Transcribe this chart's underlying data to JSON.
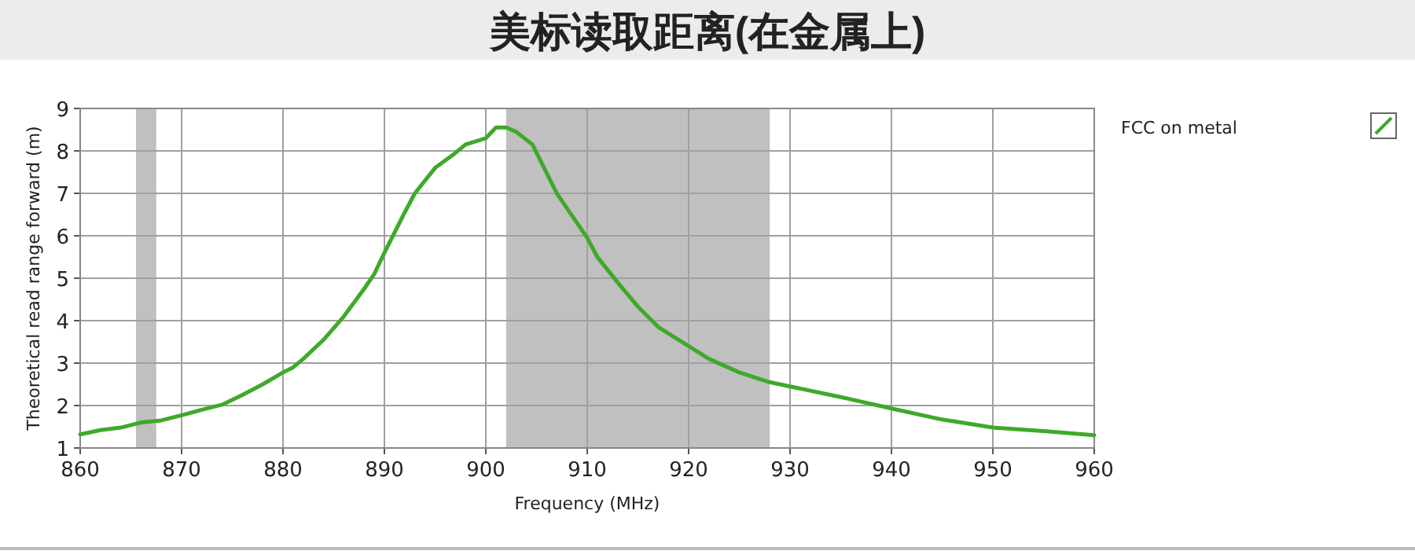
{
  "chart_data": {
    "type": "line",
    "title": "美标读取距离(在金属上)",
    "xlabel": "Frequency (MHz)",
    "ylabel": "Theoretical read range forward (m)",
    "xlim": [
      860,
      960
    ],
    "ylim": [
      1,
      9
    ],
    "xticks": [
      860,
      870,
      880,
      890,
      900,
      910,
      920,
      930,
      940,
      950,
      960
    ],
    "yticks": [
      1,
      2,
      3,
      4,
      5,
      6,
      7,
      8,
      9
    ],
    "grid": true,
    "legend": "right",
    "bands": [
      {
        "axis": "x",
        "from": 865.5,
        "to": 867.5,
        "color": "#c0c0c0"
      },
      {
        "axis": "x",
        "from": 902,
        "to": 928,
        "color": "#c0c0c0"
      }
    ],
    "series": [
      {
        "name": "FCC on metal",
        "color": "#3fa92a",
        "x": [
          860,
          862,
          864,
          866,
          868,
          870,
          872,
          874,
          876,
          878,
          880,
          881,
          882,
          884,
          886,
          888,
          889,
          890,
          892,
          893,
          895,
          897,
          898,
          900,
          901,
          902,
          903,
          904.6,
          907,
          909,
          910,
          911,
          913,
          915,
          917,
          920,
          922,
          925,
          928,
          930,
          935,
          940,
          945,
          950,
          955,
          960
        ],
        "values": [
          1.32,
          1.42,
          1.48,
          1.6,
          1.65,
          1.77,
          1.9,
          2.02,
          2.25,
          2.5,
          2.78,
          2.9,
          3.1,
          3.55,
          4.1,
          4.75,
          5.1,
          5.6,
          6.55,
          7.0,
          7.6,
          7.95,
          8.15,
          8.3,
          8.55,
          8.55,
          8.45,
          8.15,
          7.0,
          6.3,
          5.95,
          5.5,
          4.9,
          4.33,
          3.85,
          3.4,
          3.1,
          2.78,
          2.55,
          2.45,
          2.2,
          1.93,
          1.67,
          1.48,
          1.4,
          1.3
        ]
      }
    ]
  }
}
